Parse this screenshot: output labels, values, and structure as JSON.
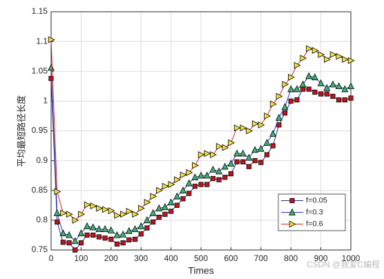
{
  "chart_data": {
    "type": "line",
    "xlabel": "Times",
    "ylabel": "平均最短路径长度",
    "watermark": "CSDN @我爱C编程",
    "x": [
      0,
      20,
      40,
      60,
      80,
      100,
      120,
      140,
      160,
      180,
      200,
      220,
      240,
      260,
      280,
      300,
      320,
      340,
      360,
      380,
      400,
      420,
      440,
      460,
      480,
      500,
      520,
      540,
      560,
      580,
      600,
      620,
      640,
      660,
      680,
      700,
      720,
      740,
      760,
      780,
      800,
      820,
      840,
      860,
      880,
      900,
      920,
      940,
      960,
      980,
      1000
    ],
    "series": [
      {
        "name": "f=0.05",
        "color": "#1f2a80",
        "marker_color": "#c0141c",
        "marker": "square",
        "values": [
          1.038,
          0.797,
          0.763,
          0.762,
          0.75,
          0.762,
          0.775,
          0.775,
          0.772,
          0.77,
          0.768,
          0.76,
          0.762,
          0.767,
          0.768,
          0.777,
          0.787,
          0.797,
          0.805,
          0.81,
          0.815,
          0.825,
          0.836,
          0.845,
          0.857,
          0.86,
          0.86,
          0.87,
          0.868,
          0.872,
          0.878,
          0.898,
          0.898,
          0.89,
          0.9,
          0.897,
          0.91,
          0.925,
          0.96,
          0.98,
          1.0,
          1.002,
          1.02,
          1.02,
          1.015,
          1.012,
          1.012,
          1.008,
          1.002,
          1.002,
          1.005
        ]
      },
      {
        "name": "f=0.3",
        "color": "#2030c8",
        "marker_color": "#3cb371",
        "marker": "triangle-up",
        "values": [
          1.056,
          0.812,
          0.778,
          0.775,
          0.765,
          0.778,
          0.79,
          0.788,
          0.785,
          0.785,
          0.783,
          0.775,
          0.776,
          0.782,
          0.785,
          0.79,
          0.8,
          0.812,
          0.82,
          0.822,
          0.83,
          0.84,
          0.85,
          0.862,
          0.872,
          0.875,
          0.875,
          0.885,
          0.882,
          0.89,
          0.895,
          0.912,
          0.912,
          0.905,
          0.918,
          0.92,
          0.93,
          0.945,
          0.972,
          0.99,
          1.02,
          1.02,
          1.028,
          1.042,
          1.04,
          1.03,
          1.022,
          1.028,
          1.025,
          1.02,
          1.025
        ]
      },
      {
        "name": "f=0.6",
        "color": "#d42020",
        "marker_color": "#f0e040",
        "marker": "triangle-right",
        "values": [
          1.103,
          0.848,
          0.812,
          0.81,
          0.8,
          0.81,
          0.826,
          0.824,
          0.82,
          0.818,
          0.816,
          0.808,
          0.81,
          0.815,
          0.81,
          0.82,
          0.83,
          0.84,
          0.85,
          0.857,
          0.86,
          0.868,
          0.876,
          0.88,
          0.892,
          0.91,
          0.912,
          0.91,
          0.924,
          0.922,
          0.93,
          0.955,
          0.955,
          0.95,
          0.962,
          0.96,
          0.975,
          0.995,
          1.008,
          1.028,
          1.04,
          1.06,
          1.072,
          1.088,
          1.085,
          1.078,
          1.07,
          1.078,
          1.075,
          1.07,
          1.068
        ]
      }
    ],
    "xlim": [
      0,
      1000
    ],
    "ylim": [
      0.75,
      1.15
    ],
    "xticks": [
      0,
      100,
      200,
      300,
      400,
      500,
      600,
      700,
      800,
      900,
      1000
    ],
    "yticks": [
      0.75,
      0.8,
      0.85,
      0.9,
      0.95,
      1,
      1.05,
      1.1,
      1.15
    ],
    "grid": true,
    "legend": "lower-right"
  }
}
